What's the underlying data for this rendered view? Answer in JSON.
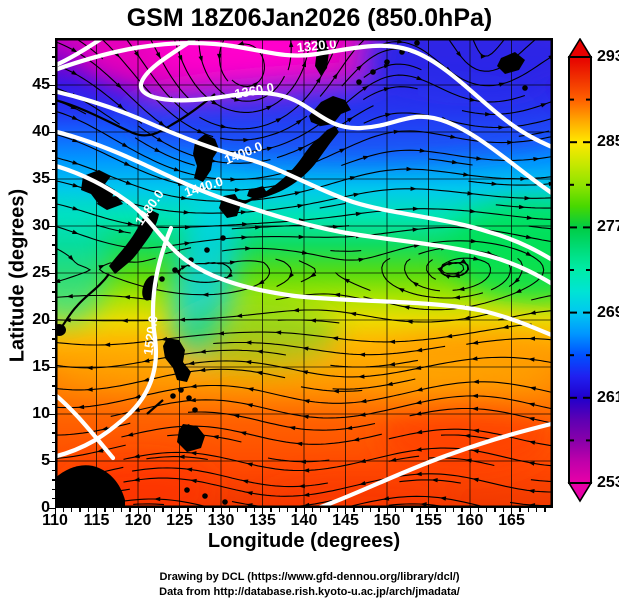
{
  "title": "GSM 18Z06Jan2026 (850.0hPa)",
  "x_axis": {
    "label": "Longitude (degrees)",
    "ticks": [
      "110",
      "115",
      "120",
      "125",
      "130",
      "135",
      "140",
      "145",
      "150",
      "155",
      "160",
      "165"
    ],
    "tick_values": [
      110,
      115,
      120,
      125,
      130,
      135,
      140,
      145,
      150,
      155,
      160,
      165
    ],
    "range": [
      110,
      170
    ]
  },
  "y_axis": {
    "label": "Latitude  (degrees)",
    "ticks": [
      "0",
      "5",
      "10",
      "15",
      "20",
      "25",
      "30",
      "35",
      "40",
      "45"
    ],
    "tick_values": [
      0,
      5,
      10,
      15,
      20,
      25,
      30,
      35,
      40,
      45
    ],
    "range": [
      0,
      50
    ]
  },
  "colorbar": {
    "labels": [
      "293",
      "285",
      "277",
      "269",
      "261",
      "253"
    ],
    "values": [
      293,
      285,
      277,
      269,
      261,
      253
    ],
    "range": [
      253,
      293
    ],
    "top_color": "#e60000",
    "bottom_color": "#e800a8"
  },
  "contours": {
    "labels": [
      "1320.0",
      "1360.0",
      "1400.0",
      "1440.0",
      "1480.0",
      "1520.0"
    ]
  },
  "credits": [
    "Drawing by DCL (https://www.gfd-dennou.org/library/dcl/)",
    "Data from http://database.rish.kyoto-u.ac.jp/arch/jmadata/"
  ],
  "chart_data": {
    "type": "heatmap",
    "title": "GSM 18Z06Jan2026 (850.0hPa)",
    "xlabel": "Longitude (degrees)",
    "ylabel": "Latitude  (degrees)",
    "x_ticks": [
      110,
      115,
      120,
      125,
      130,
      135,
      140,
      145,
      150,
      155,
      160,
      165
    ],
    "y_ticks": [
      0,
      5,
      10,
      15,
      20,
      25,
      30,
      35,
      40,
      45
    ],
    "x_range": [
      110,
      170
    ],
    "y_range": [
      0,
      50
    ],
    "grid": true,
    "shaded_field": "temperature at 850 hPa (K)",
    "colorbar": {
      "position": "right",
      "orientation": "vertical",
      "ticks": [
        253,
        261,
        269,
        277,
        285,
        293
      ],
      "range": [
        253,
        293
      ],
      "arrow_caps": "both"
    },
    "overlays": [
      {
        "type": "contour",
        "field": "geopotential-height white contours",
        "labeled_levels": [
          1320,
          1360,
          1400,
          1440,
          1480,
          1520
        ],
        "interval": 40
      },
      {
        "type": "streamlines",
        "field": "wind, black streamlines with arrowheads"
      },
      {
        "type": "coastlines",
        "color": "black",
        "regions": [
          "China coast",
          "Korea",
          "Japan",
          "Sakhalin",
          "Kuril Islands",
          "Taiwan",
          "Ryukyu Islands",
          "Philippines",
          "Borneo",
          "Hainan"
        ]
      }
    ],
    "approx_temperature_profile_midlon": [
      {
        "lat": 0,
        "T": 291
      },
      {
        "lat": 5,
        "T": 291
      },
      {
        "lat": 10,
        "T": 290
      },
      {
        "lat": 15,
        "T": 288
      },
      {
        "lat": 20,
        "T": 285
      },
      {
        "lat": 25,
        "T": 280
      },
      {
        "lat": 30,
        "T": 273
      },
      {
        "lat": 35,
        "T": 266
      },
      {
        "lat": 40,
        "T": 261
      },
      {
        "lat": 45,
        "T": 257
      },
      {
        "lat": 49,
        "T": 254
      }
    ],
    "notes": "Warm (~293 K, orange-red) across the tropics; cold core (~253 K, magenta) over the far northwest/top of domain; cyclonic streamline circulation near top-center; tight white contour bundle (1400-1480) south of Japan; easterly trade-wind streamlines south of ~25N."
  }
}
